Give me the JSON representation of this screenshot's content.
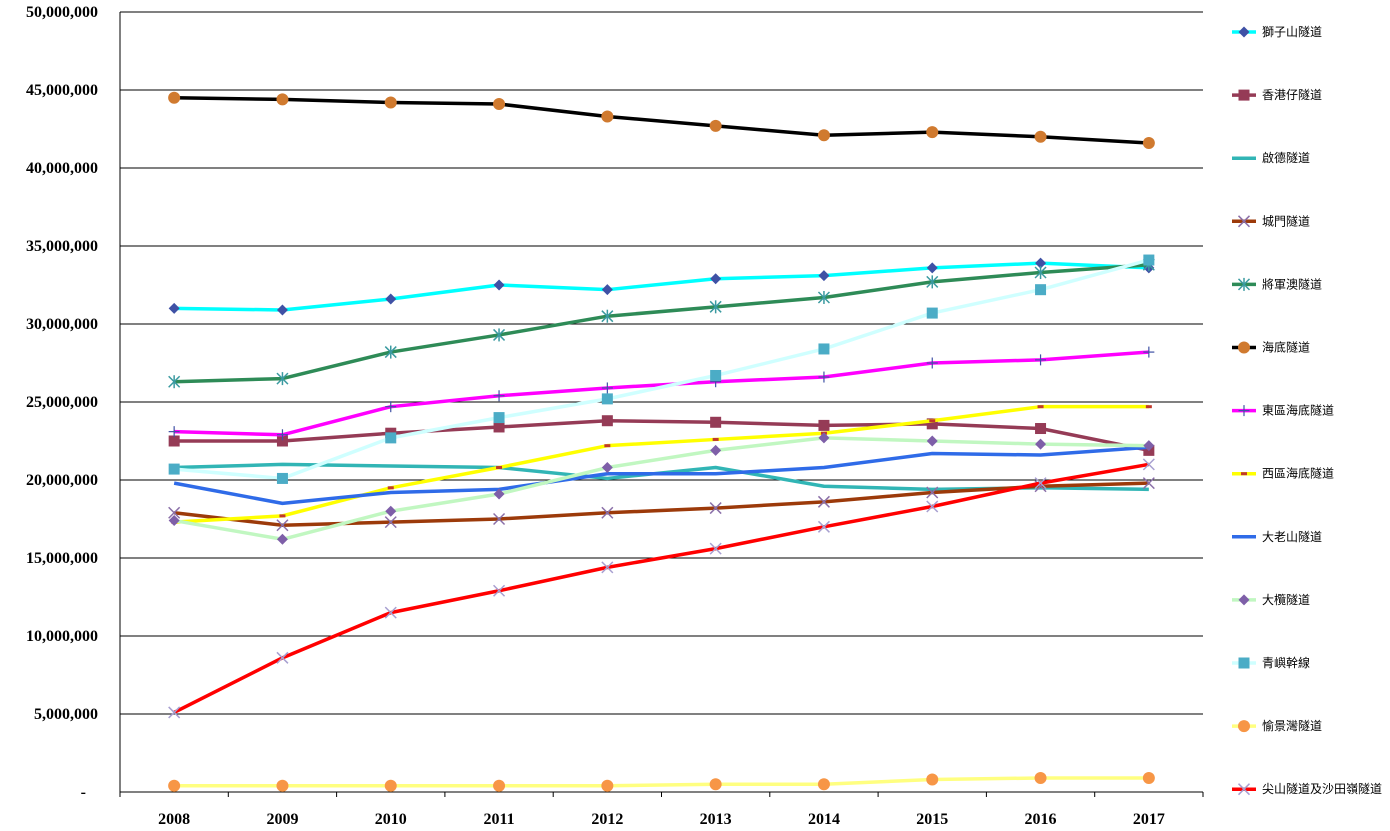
{
  "chart_data": {
    "type": "line",
    "title": "",
    "xlabel": "",
    "ylabel": "",
    "categories": [
      "2008",
      "2009",
      "2010",
      "2011",
      "2012",
      "2013",
      "2014",
      "2015",
      "2016",
      "2017"
    ],
    "ylim": [
      0,
      50000000
    ],
    "y_ticks": [
      0,
      5000000,
      10000000,
      15000000,
      20000000,
      25000000,
      30000000,
      35000000,
      40000000,
      45000000,
      50000000
    ],
    "y_tick_labels": [
      "-",
      "5,000,000",
      "10,000,000",
      "15,000,000",
      "20,000,000",
      "25,000,000",
      "30,000,000",
      "35,000,000",
      "40,000,000",
      "45,000,000",
      "50,000,000"
    ],
    "grid": true,
    "legend_position": "right",
    "series": [
      {
        "name": "獅子山隧道",
        "color": "#00FFFF",
        "marker": "diamond",
        "marker_color": "#3F51A5",
        "values": [
          31000000,
          30900000,
          31600000,
          32500000,
          32200000,
          32900000,
          33100000,
          33600000,
          33900000,
          33600000
        ]
      },
      {
        "name": "香港仔隧道",
        "color": "#953B56",
        "marker": "square",
        "marker_color": "#953B56",
        "values": [
          22500000,
          22500000,
          23000000,
          23400000,
          23800000,
          23700000,
          23500000,
          23600000,
          23300000,
          21900000
        ]
      },
      {
        "name": "啟德隧道",
        "color": "#31B5B5",
        "marker": "none",
        "marker_color": "#31B5B5",
        "values": [
          20800000,
          21000000,
          20900000,
          20800000,
          20100000,
          20800000,
          19600000,
          19400000,
          19500000,
          19400000
        ]
      },
      {
        "name": "城門隧道",
        "color": "#9C3A0A",
        "marker": "x",
        "marker_color": "#8A6FA8",
        "values": [
          17900000,
          17100000,
          17300000,
          17500000,
          17900000,
          18200000,
          18600000,
          19200000,
          19600000,
          19800000
        ]
      },
      {
        "name": "將軍澳隧道",
        "color": "#2E8B57",
        "marker": "star",
        "marker_color": "#3A9AA0",
        "values": [
          26300000,
          26500000,
          28200000,
          29300000,
          30500000,
          31100000,
          31700000,
          32700000,
          33300000,
          33800000
        ]
      },
      {
        "name": "海底隧道",
        "color": "#000000",
        "marker": "circle",
        "marker_color": "#D07A2F",
        "values": [
          44500000,
          44400000,
          44200000,
          44100000,
          43300000,
          42700000,
          42100000,
          42300000,
          42000000,
          41600000
        ]
      },
      {
        "name": "東區海底隧道",
        "color": "#FF00FF",
        "marker": "plus",
        "marker_color": "#3F51A5",
        "values": [
          23100000,
          22900000,
          24700000,
          25400000,
          25900000,
          26300000,
          26600000,
          27500000,
          27700000,
          28200000
        ]
      },
      {
        "name": "西區海底隧道",
        "color": "#FFFF00",
        "marker": "dash",
        "marker_color": "#C0392B",
        "values": [
          17300000,
          17700000,
          19500000,
          20800000,
          22200000,
          22600000,
          23000000,
          23800000,
          24700000,
          24700000
        ]
      },
      {
        "name": "大老山隧道",
        "color": "#2F6BE8",
        "marker": "none",
        "marker_color": "#2F6BE8",
        "values": [
          19800000,
          18500000,
          19200000,
          19400000,
          20400000,
          20400000,
          20800000,
          21700000,
          21600000,
          22100000
        ]
      },
      {
        "name": "大欖隧道",
        "color": "#C1F7C1",
        "marker": "diamond",
        "marker_color": "#7E5FA8",
        "values": [
          17400000,
          16200000,
          18000000,
          19100000,
          20800000,
          21900000,
          22700000,
          22500000,
          22300000,
          22200000
        ]
      },
      {
        "name": "青嶼幹線",
        "color": "#CFFFFF",
        "marker": "square",
        "marker_color": "#4BACC6",
        "values": [
          20700000,
          20100000,
          22700000,
          24000000,
          25200000,
          26700000,
          28400000,
          30700000,
          32200000,
          34100000
        ]
      },
      {
        "name": "愉景灣隧道",
        "color": "#FFFF80",
        "marker": "circle",
        "marker_color": "#F79646",
        "values": [
          400000,
          400000,
          400000,
          400000,
          400000,
          500000,
          500000,
          800000,
          900000,
          900000
        ]
      },
      {
        "name": "尖山隧道及沙田嶺隧道",
        "color": "#FF0000",
        "marker": "x",
        "marker_color": "#A79FD0",
        "values": [
          5100000,
          8600000,
          11500000,
          12900000,
          14400000,
          15600000,
          17000000,
          18300000,
          19800000,
          21000000
        ]
      }
    ]
  }
}
